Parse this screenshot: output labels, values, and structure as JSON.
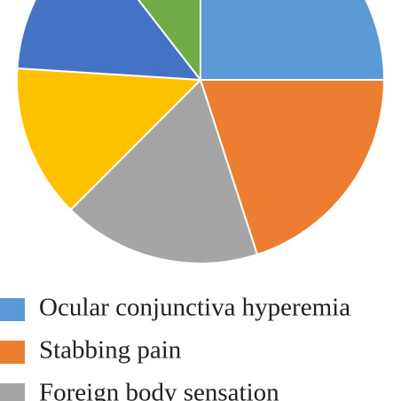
{
  "chart_data": {
    "type": "pie",
    "categories": [
      "Ocular conjunctiva hyperemia",
      "Stabbing pain",
      "Foreign body sensation",
      null,
      null,
      null
    ],
    "values": [
      25,
      20,
      17.5,
      13.5,
      13.5,
      10.5
    ],
    "colors": [
      "#5b9bd5",
      "#ed7d31",
      "#a5a5a5",
      "#ffc000",
      "#4472c4",
      "#70ad47"
    ]
  }
}
